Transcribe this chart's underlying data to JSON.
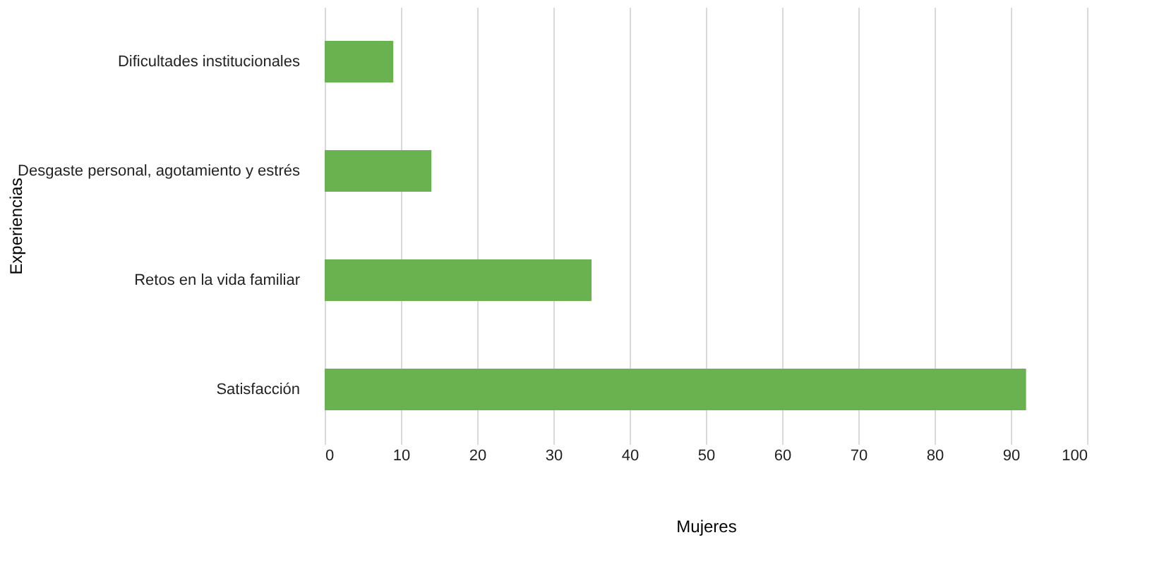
{
  "chart_data": {
    "type": "bar",
    "orientation": "horizontal",
    "categories": [
      "Dificultades institucionales",
      "Desgaste personal, agotamiento y estrés",
      "Retos en la vida familiar",
      "Satisfacción"
    ],
    "values": [
      9,
      14,
      35,
      92
    ],
    "color": "#6ab250",
    "xlabel": "Mujeres",
    "ylabel": "Experiencias",
    "xlim": [
      0,
      100
    ],
    "xticks": [
      0,
      10,
      20,
      30,
      40,
      50,
      60,
      70,
      80,
      90,
      100
    ],
    "grid": "x"
  }
}
